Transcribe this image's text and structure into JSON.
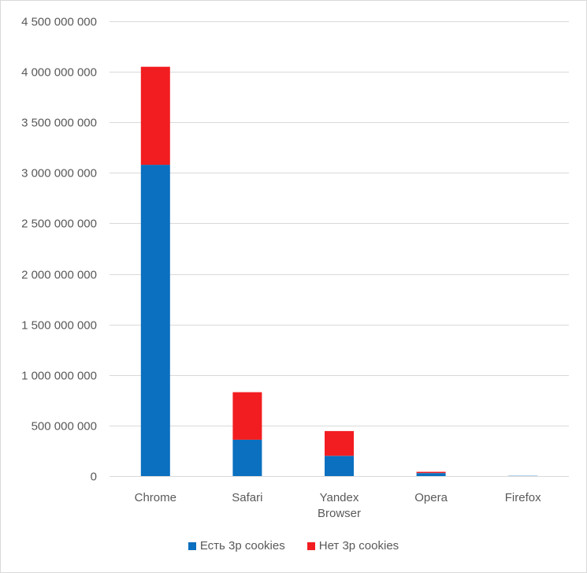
{
  "chart_data": {
    "type": "bar",
    "stacked": true,
    "categories": [
      "Chrome",
      "Safari",
      "Yandex Browser",
      "Opera",
      "Firefox"
    ],
    "category_lines": [
      [
        "Chrome"
      ],
      [
        "Safari"
      ],
      [
        "Yandex",
        "Browser"
      ],
      [
        "Opera"
      ],
      [
        "Firefox"
      ]
    ],
    "series": [
      {
        "name": "Есть 3р cookies",
        "color": "#0a70bf",
        "values": [
          3080000000,
          360000000,
          200000000,
          30000000,
          2000000
        ]
      },
      {
        "name": "Нет 3р cookies",
        "color": "#f21d20",
        "values": [
          970000000,
          470000000,
          245000000,
          12000000,
          0
        ]
      }
    ],
    "ylim": [
      0,
      4500000000
    ],
    "yticks": [
      0,
      500000000,
      1000000000,
      1500000000,
      2000000000,
      2500000000,
      3000000000,
      3500000000,
      4000000000,
      4500000000
    ],
    "ytick_labels": [
      "0",
      "500 000 000",
      "1 000 000 000",
      "1 500 000 000",
      "2 000 000 000",
      "2 500 000 000",
      "3 000 000 000",
      "3 500 000 000",
      "4 000 000 000",
      "4 500 000 000"
    ],
    "grid": true,
    "legend_position": "bottom",
    "title": "",
    "xlabel": "",
    "ylabel": ""
  }
}
